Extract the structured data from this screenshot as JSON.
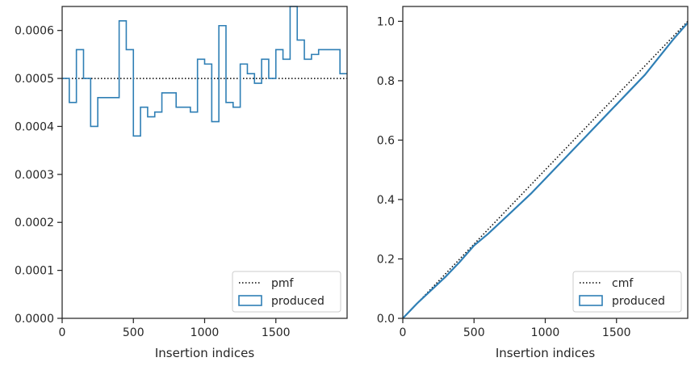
{
  "chart_data": [
    {
      "type": "line",
      "subtype": "step",
      "xlabel": "Insertion indices",
      "ylabel": "",
      "xlim": [
        0,
        2000
      ],
      "ylim": [
        0,
        0.00065
      ],
      "xticks": [
        0,
        500,
        1000,
        1500
      ],
      "xtick_labels": [
        "0",
        "500",
        "1000",
        "1500"
      ],
      "yticks": [
        0,
        0.0001,
        0.0002,
        0.0003,
        0.0004,
        0.0005,
        0.0006
      ],
      "ytick_labels": [
        "0.0000",
        "0.0001",
        "0.0002",
        "0.0003",
        "0.0004",
        "0.0005",
        "0.0006"
      ],
      "grid": false,
      "legend_position": "lower-right",
      "series": [
        {
          "name": "pmf",
          "style": "dotted",
          "color": "#000000",
          "x": [
            0,
            2000
          ],
          "y": [
            0.0005,
            0.0005
          ]
        },
        {
          "name": "produced",
          "style": "step",
          "color": "#2f7fb5",
          "bin_edges": [
            0,
            50,
            100,
            150,
            200,
            250,
            400,
            450,
            500,
            550,
            600,
            650,
            700,
            800,
            900,
            950,
            1000,
            1050,
            1100,
            1150,
            1200,
            1250,
            1300,
            1350,
            1400,
            1450,
            1500,
            1550,
            1600,
            1650,
            1700,
            1750,
            1800,
            1850,
            1950,
            2000
          ],
          "values": [
            0.0005,
            0.00045,
            0.00056,
            0.0005,
            0.0004,
            0.00046,
            0.00062,
            0.00056,
            0.00038,
            0.00044,
            0.00042,
            0.00043,
            0.00047,
            0.00044,
            0.00043,
            0.00054,
            0.00053,
            0.00041,
            0.00061,
            0.00045,
            0.00044,
            0.00053,
            0.00051,
            0.00049,
            0.00054,
            0.0005,
            0.00056,
            0.00054,
            0.00065,
            0.00058,
            0.00054,
            0.00055,
            0.00056,
            0.00056,
            0.00051
          ]
        }
      ]
    },
    {
      "type": "line",
      "xlabel": "Insertion indices",
      "ylabel": "",
      "xlim": [
        0,
        2000
      ],
      "ylim": [
        0,
        1.05
      ],
      "xticks": [
        0,
        500,
        1000,
        1500
      ],
      "xtick_labels": [
        "0",
        "500",
        "1000",
        "1500"
      ],
      "yticks": [
        0,
        0.2,
        0.4,
        0.6,
        0.8,
        1.0
      ],
      "ytick_labels": [
        "0.0",
        "0.2",
        "0.4",
        "0.6",
        "0.8",
        "1.0"
      ],
      "grid": false,
      "legend_position": "lower-right",
      "series": [
        {
          "name": "cmf",
          "style": "dotted",
          "color": "#000000",
          "x": [
            0,
            2000
          ],
          "y": [
            0,
            1.0
          ]
        },
        {
          "name": "produced",
          "style": "line",
          "color": "#2f7fb5",
          "x": [
            0,
            100,
            200,
            300,
            400,
            500,
            600,
            700,
            800,
            900,
            1000,
            1100,
            1200,
            1300,
            1400,
            1500,
            1600,
            1700,
            1800,
            1900,
            2000
          ],
          "y": [
            0,
            0.05,
            0.095,
            0.14,
            0.19,
            0.245,
            0.285,
            0.33,
            0.375,
            0.42,
            0.47,
            0.52,
            0.57,
            0.62,
            0.67,
            0.72,
            0.77,
            0.82,
            0.88,
            0.94,
            0.995
          ]
        }
      ]
    }
  ]
}
